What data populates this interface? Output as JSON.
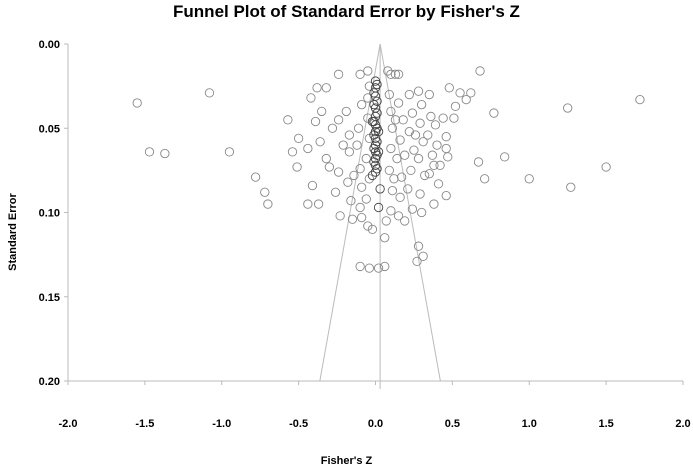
{
  "chart_data": {
    "type": "scatter",
    "title": "Funnel Plot of Standard Error by Fisher's Z",
    "xlabel": "Fisher's Z",
    "ylabel": "Standard Error",
    "xlim": [
      -2.0,
      2.0
    ],
    "ylim": [
      0.0,
      0.2
    ],
    "y_inverted": true,
    "grid": false,
    "x_ticks": [
      "-2.0",
      "-1.5",
      "-1.0",
      "-0.5",
      "0.0",
      "0.5",
      "1.0",
      "1.5",
      "2.0"
    ],
    "y_ticks": [
      "0.00",
      "0.05",
      "0.10",
      "0.15",
      "0.20"
    ],
    "x_tick_values": [
      -2.0,
      -1.5,
      -1.0,
      -0.5,
      0.0,
      0.5,
      1.0,
      1.5,
      2.0
    ],
    "y_tick_values": [
      0.0,
      0.05,
      0.1,
      0.15,
      0.2
    ],
    "mean_effect": 0.03,
    "funnel_z_multiplier": 1.96,
    "marker_style": "open-circle",
    "marker_color": "#888888",
    "line_color": "#bbbbbb",
    "points": [
      [
        -1.55,
        0.035
      ],
      [
        -1.08,
        0.029
      ],
      [
        -1.47,
        0.064
      ],
      [
        -1.37,
        0.065
      ],
      [
        -0.95,
        0.064
      ],
      [
        -0.78,
        0.079
      ],
      [
        -0.72,
        0.088
      ],
      [
        -0.7,
        0.095
      ],
      [
        1.72,
        0.033
      ],
      [
        1.25,
        0.038
      ],
      [
        1.5,
        0.073
      ],
      [
        1.27,
        0.085
      ],
      [
        1.0,
        0.08
      ],
      [
        0.84,
        0.067
      ],
      [
        0.77,
        0.041
      ],
      [
        0.68,
        0.016
      ],
      [
        0.67,
        0.07
      ],
      [
        0.71,
        0.08
      ],
      [
        0.59,
        0.033
      ],
      [
        0.55,
        0.029
      ],
      [
        0.62,
        0.029
      ],
      [
        0.48,
        0.026
      ],
      [
        0.52,
        0.037
      ],
      [
        0.44,
        0.044
      ],
      [
        0.51,
        0.044
      ],
      [
        0.46,
        0.055
      ],
      [
        0.46,
        0.062
      ],
      [
        0.47,
        0.067
      ],
      [
        0.42,
        0.072
      ],
      [
        0.46,
        0.09
      ],
      [
        0.38,
        0.095
      ],
      [
        0.28,
        0.12
      ],
      [
        0.31,
        0.126
      ],
      [
        0.27,
        0.129
      ],
      [
        0.06,
        0.132
      ],
      [
        -0.1,
        0.132
      ],
      [
        -0.04,
        0.133
      ],
      [
        0.02,
        0.133
      ],
      [
        -0.02,
        0.11
      ],
      [
        0.07,
        0.105
      ],
      [
        -0.57,
        0.045
      ],
      [
        -0.54,
        0.064
      ],
      [
        -0.5,
        0.056
      ],
      [
        -0.51,
        0.073
      ],
      [
        -0.42,
        0.032
      ],
      [
        -0.44,
        0.062
      ],
      [
        -0.44,
        0.095
      ],
      [
        -0.38,
        0.026
      ],
      [
        -0.32,
        0.026
      ],
      [
        -0.35,
        0.04
      ],
      [
        -0.39,
        0.046
      ],
      [
        -0.41,
        0.084
      ],
      [
        -0.36,
        0.058
      ],
      [
        -0.32,
        0.068
      ],
      [
        -0.37,
        0.095
      ],
      [
        -0.24,
        0.018
      ],
      [
        -0.24,
        0.045
      ],
      [
        -0.3,
        0.073
      ],
      [
        -0.24,
        0.076
      ],
      [
        -0.26,
        0.088
      ],
      [
        -0.23,
        0.102
      ],
      [
        -0.19,
        0.04
      ],
      [
        -0.17,
        0.054
      ],
      [
        -0.17,
        0.064
      ],
      [
        -0.18,
        0.082
      ],
      [
        -0.16,
        0.093
      ],
      [
        -0.15,
        0.104
      ],
      [
        -0.1,
        0.018
      ],
      [
        -0.09,
        0.036
      ],
      [
        -0.11,
        0.05
      ],
      [
        -0.12,
        0.06
      ],
      [
        -0.1,
        0.074
      ],
      [
        -0.09,
        0.085
      ],
      [
        -0.1,
        0.097
      ],
      [
        -0.09,
        0.103
      ],
      [
        -0.05,
        0.016
      ],
      [
        -0.04,
        0.025
      ],
      [
        -0.05,
        0.032
      ],
      [
        -0.05,
        0.044
      ],
      [
        -0.04,
        0.056
      ],
      [
        -0.06,
        0.068
      ],
      [
        -0.04,
        0.08
      ],
      [
        -0.06,
        0.092
      ],
      [
        -0.05,
        0.108
      ],
      [
        0.08,
        0.016
      ],
      [
        0.1,
        0.018
      ],
      [
        0.13,
        0.018
      ],
      [
        0.15,
        0.018
      ],
      [
        0.09,
        0.03
      ],
      [
        0.1,
        0.04
      ],
      [
        0.11,
        0.05
      ],
      [
        0.1,
        0.062
      ],
      [
        0.09,
        0.075
      ],
      [
        0.11,
        0.087
      ],
      [
        0.1,
        0.099
      ],
      [
        0.15,
        0.035
      ],
      [
        0.18,
        0.045
      ],
      [
        0.16,
        0.057
      ],
      [
        0.19,
        0.066
      ],
      [
        0.17,
        0.079
      ],
      [
        0.16,
        0.091
      ],
      [
        0.15,
        0.102
      ],
      [
        0.22,
        0.03
      ],
      [
        0.24,
        0.041
      ],
      [
        0.22,
        0.052
      ],
      [
        0.25,
        0.063
      ],
      [
        0.23,
        0.075
      ],
      [
        0.21,
        0.086
      ],
      [
        0.24,
        0.098
      ],
      [
        0.28,
        0.028
      ],
      [
        0.3,
        0.036
      ],
      [
        0.29,
        0.047
      ],
      [
        0.31,
        0.058
      ],
      [
        0.28,
        0.068
      ],
      [
        0.32,
        0.078
      ],
      [
        0.29,
        0.089
      ],
      [
        0.3,
        0.1
      ],
      [
        0.35,
        0.03
      ],
      [
        0.36,
        0.043
      ],
      [
        0.34,
        0.054
      ],
      [
        0.37,
        0.066
      ],
      [
        0.35,
        0.077
      ],
      [
        0.39,
        0.048
      ],
      [
        0.4,
        0.06
      ],
      [
        0.38,
        0.072
      ],
      [
        0.41,
        0.083
      ],
      [
        0.13,
        0.045
      ],
      [
        0.14,
        0.068
      ],
      [
        0.12,
        0.08
      ],
      [
        0.06,
        0.115
      ],
      [
        0.19,
        0.105
      ],
      [
        -0.21,
        0.06
      ],
      [
        -0.28,
        0.05
      ],
      [
        -0.14,
        0.078
      ],
      [
        0.26,
        0.054
      ]
    ],
    "center_points": [
      [
        0.0,
        0.022
      ],
      [
        0.01,
        0.024
      ],
      [
        0.0,
        0.026
      ],
      [
        -0.01,
        0.029
      ],
      [
        0.0,
        0.031
      ],
      [
        0.01,
        0.034
      ],
      [
        -0.01,
        0.036
      ],
      [
        0.0,
        0.038
      ],
      [
        0.01,
        0.041
      ],
      [
        0.0,
        0.043
      ],
      [
        -0.01,
        0.046
      ],
      [
        0.0,
        0.048
      ],
      [
        0.01,
        0.05
      ],
      [
        0.0,
        0.052
      ],
      [
        -0.01,
        0.054
      ],
      [
        0.0,
        0.056
      ],
      [
        0.01,
        0.058
      ],
      [
        0.0,
        0.06
      ],
      [
        -0.01,
        0.062
      ],
      [
        0.0,
        0.064
      ],
      [
        0.01,
        0.066
      ],
      [
        0.0,
        0.068
      ],
      [
        -0.01,
        0.07
      ],
      [
        0.0,
        0.072
      ],
      [
        0.01,
        0.074
      ],
      [
        0.0,
        0.076
      ],
      [
        -0.02,
        0.078
      ],
      [
        0.02,
        0.052
      ],
      [
        -0.02,
        0.046
      ],
      [
        0.02,
        0.064
      ],
      [
        0.03,
        0.086
      ],
      [
        0.02,
        0.097
      ]
    ]
  }
}
